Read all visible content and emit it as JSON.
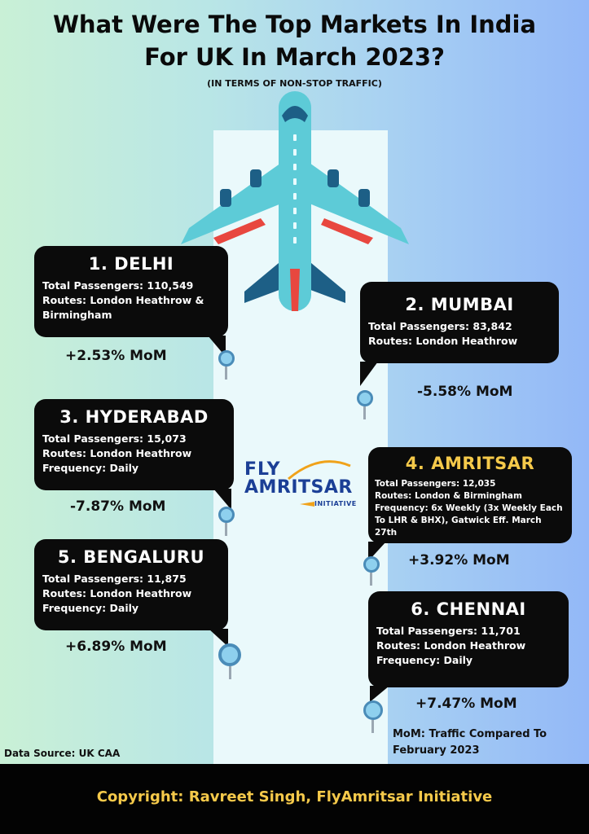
{
  "header": {
    "title_line1": "What Were The Top Markets In India",
    "title_line2": "For UK In March 2023?",
    "subtitle": "(IN TERMS OF NON-STOP TRAFFIC)"
  },
  "markets": [
    {
      "name": "1. DELHI",
      "lines": [
        "Total Passengers: 110,549",
        "Routes: London Heathrow &",
        "Birmingham"
      ],
      "mom": "+2.53% MoM"
    },
    {
      "name": "2. MUMBAI",
      "lines": [
        "Total Passengers: 83,842",
        "Routes: London Heathrow"
      ],
      "mom": "-5.58% MoM"
    },
    {
      "name": "3. HYDERABAD",
      "lines": [
        "Total Passengers: 15,073",
        "Routes: London Heathrow",
        "Frequency: Daily"
      ],
      "mom": "-7.87% MoM"
    },
    {
      "name": "4. AMRITSAR",
      "lines": [
        "Total Passengers: 12,035",
        "Routes: London & Birmingham",
        "Frequency: 6x Weekly (3x Weekly Each",
        "To LHR & BHX), Gatwick Eff. March 27th"
      ],
      "mom": "+3.92% MoM"
    },
    {
      "name": "5. BENGALURU",
      "lines": [
        "Total Passengers: 11,875",
        "Routes: London Heathrow",
        "Frequency: Daily"
      ],
      "mom": "+6.89% MoM"
    },
    {
      "name": "6. CHENNAI",
      "lines": [
        "Total Passengers: 11,701",
        "Routes: London Heathrow",
        "Frequency: Daily"
      ],
      "mom": "+7.47% MoM"
    }
  ],
  "logo": {
    "line1": "FLY",
    "line2": "AMRITSAR",
    "line3": "INITIATIVE"
  },
  "note": {
    "line1": "MoM: Traffic Compared To",
    "line2": "February 2023"
  },
  "source": "Data Source: UK CAA",
  "footer": {
    "copyright": "Copyright: Ravreet Singh, FlyAmritsar Initiative"
  },
  "colors": {
    "card": "#0b0b0b",
    "gold": "#f5c94a",
    "pin": "#8ed0ee",
    "plane_body": "#5dcbd7"
  }
}
